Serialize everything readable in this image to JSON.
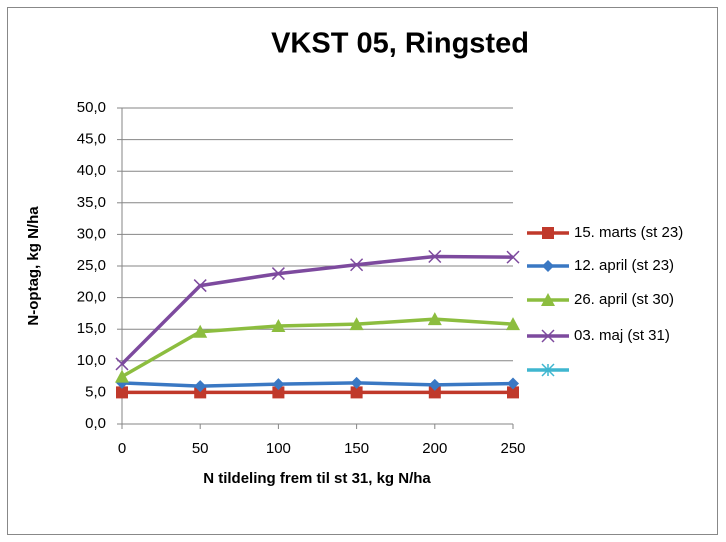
{
  "chart_data": {
    "type": "line",
    "title": "VKST 05, Ringsted",
    "xlabel": "N tildeling frem til st 31, kg N/ha",
    "ylabel": "N-optag, kg N/ha",
    "x": [
      0,
      50,
      100,
      150,
      200,
      250
    ],
    "xlim": [
      0,
      250
    ],
    "xticks": [
      0,
      50,
      100,
      150,
      200,
      250
    ],
    "ylim": [
      0,
      50
    ],
    "yticks": [
      {
        "value": 0,
        "label": "0,0"
      },
      {
        "value": 5,
        "label": "5,0"
      },
      {
        "value": 10,
        "label": "10,0"
      },
      {
        "value": 15,
        "label": "15,0"
      },
      {
        "value": 20,
        "label": "20,0"
      },
      {
        "value": 25,
        "label": "25,0"
      },
      {
        "value": 30,
        "label": "30,0"
      },
      {
        "value": 35,
        "label": "35,0"
      },
      {
        "value": 40,
        "label": "40,0"
      },
      {
        "value": 45,
        "label": "45,0"
      },
      {
        "value": 50,
        "label": "50,0"
      }
    ],
    "grid": true,
    "legend": "right",
    "series": [
      {
        "name": "15. marts (st 23)",
        "color": "#c0392b",
        "marker": "square",
        "values": [
          5.0,
          5.0,
          5.0,
          5.0,
          5.0,
          5.0
        ]
      },
      {
        "name": "12. april (st 23)",
        "color": "#3a78c3",
        "marker": "diamond",
        "values": [
          6.5,
          6.0,
          6.3,
          6.5,
          6.2,
          6.4
        ]
      },
      {
        "name": "26. april (st 30)",
        "color": "#8cbd3f",
        "marker": "triangle",
        "values": [
          7.5,
          14.6,
          15.5,
          15.8,
          16.6,
          15.8
        ]
      },
      {
        "name": "03. maj (st 31)",
        "color": "#7d4a9e",
        "marker": "x",
        "values": [
          9.5,
          21.9,
          23.8,
          25.2,
          26.5,
          26.4
        ]
      },
      {
        "name": null,
        "color": "#3fb6cf",
        "marker": "star",
        "values": [
          null,
          null,
          null,
          null,
          null,
          null
        ]
      }
    ]
  }
}
